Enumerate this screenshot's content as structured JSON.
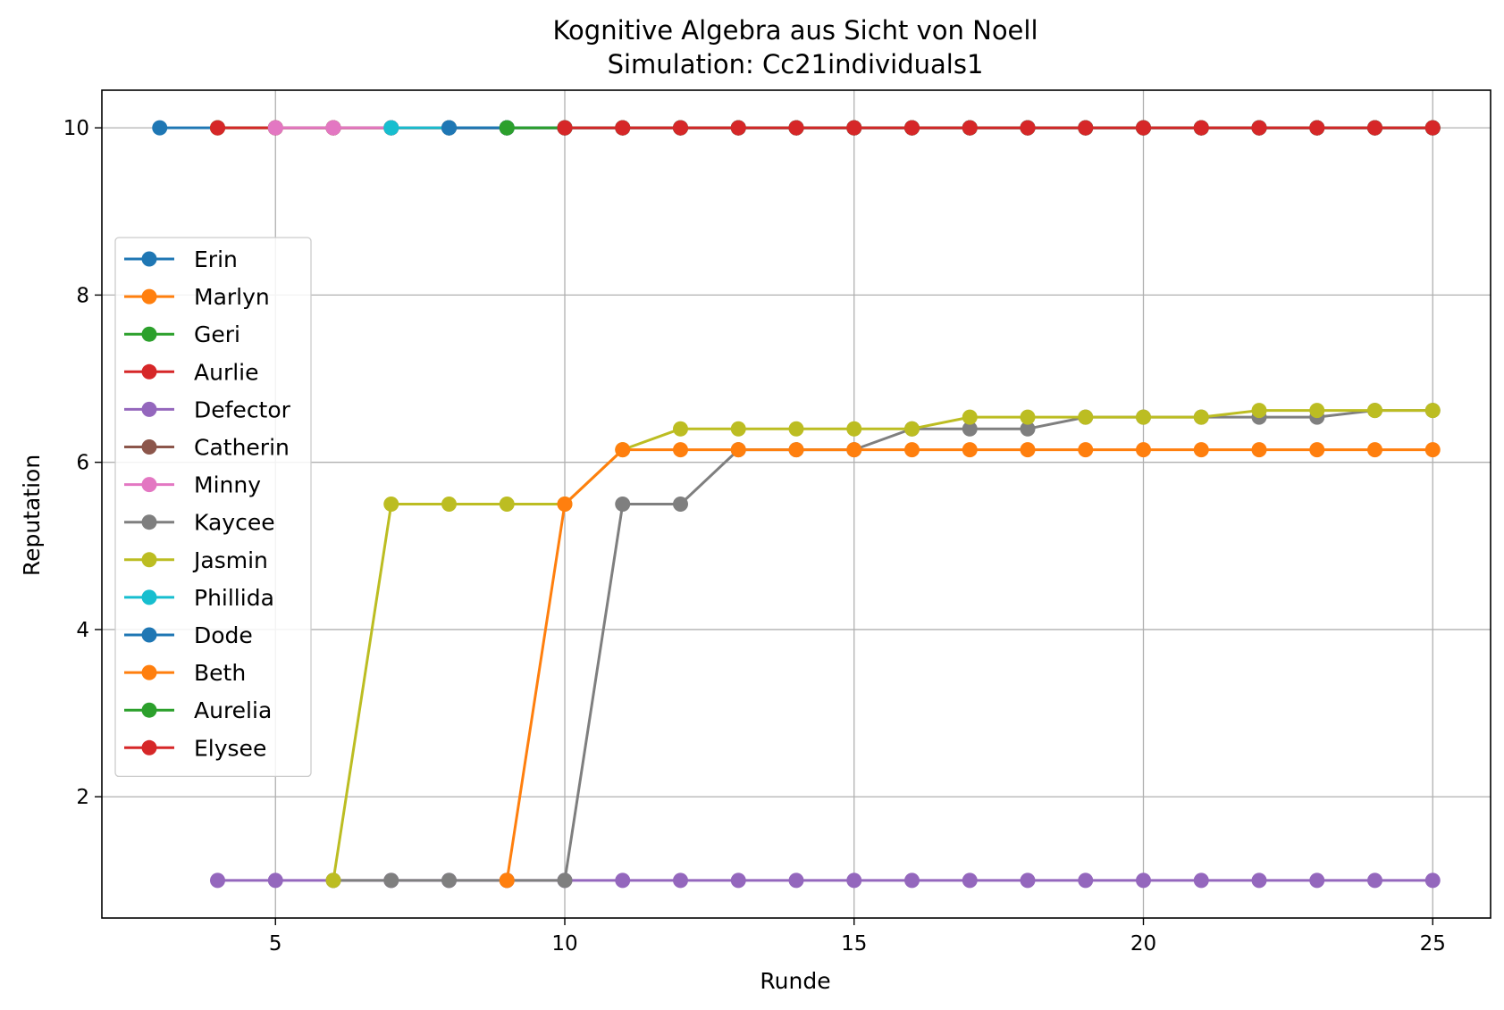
{
  "chart_data": {
    "type": "line",
    "title": "Kognitive Algebra aus Sicht von Noell",
    "subtitle": "Simulation: Cc21individuals1",
    "xlabel": "Runde",
    "ylabel": "Reputation",
    "xlim": [
      2.0,
      26.0
    ],
    "ylim": [
      0.55,
      10.45
    ],
    "xticks": [
      5,
      10,
      15,
      20,
      25
    ],
    "yticks": [
      2,
      4,
      6,
      8,
      10
    ],
    "grid": true,
    "legend_position": "center-left",
    "series": [
      {
        "name": "Erin",
        "color": "#1f77b4",
        "x": [
          3,
          4,
          5,
          6,
          7,
          8,
          9,
          10,
          11,
          12,
          13,
          14,
          15,
          16,
          17,
          18,
          19,
          20,
          21,
          22,
          23,
          24,
          25
        ],
        "y": [
          10,
          10,
          10,
          10,
          10,
          10,
          10,
          10,
          10,
          10,
          10,
          10,
          10,
          10,
          10,
          10,
          10,
          10,
          10,
          10,
          10,
          10,
          10
        ]
      },
      {
        "name": "Marlyn",
        "color": "#ff7f0e",
        "x": [
          4,
          5,
          6,
          7,
          8,
          9,
          10,
          11,
          12,
          13,
          14,
          15,
          16,
          17,
          18,
          19,
          20,
          21,
          22,
          23,
          24,
          25
        ],
        "y": [
          10,
          10,
          10,
          10,
          10,
          10,
          10,
          10,
          10,
          10,
          10,
          10,
          10,
          10,
          10,
          10,
          10,
          10,
          10,
          10,
          10,
          10
        ]
      },
      {
        "name": "Geri",
        "color": "#2ca02c",
        "x": [
          4,
          5,
          6,
          7,
          8,
          9,
          10,
          11,
          12,
          13,
          14,
          15,
          16,
          17,
          18,
          19,
          20,
          21,
          22,
          23,
          24,
          25
        ],
        "y": [
          10,
          10,
          10,
          10,
          10,
          10,
          10,
          10,
          10,
          10,
          10,
          10,
          10,
          10,
          10,
          10,
          10,
          10,
          10,
          10,
          10,
          10
        ]
      },
      {
        "name": "Aurlie",
        "color": "#d62728",
        "x": [
          4,
          5,
          6,
          7,
          8,
          9,
          10,
          11,
          12,
          13,
          14,
          15,
          16,
          17,
          18,
          19,
          20,
          21,
          22,
          23,
          24,
          25
        ],
        "y": [
          10,
          10,
          10,
          10,
          10,
          10,
          10,
          10,
          10,
          10,
          10,
          10,
          10,
          10,
          10,
          10,
          10,
          10,
          10,
          10,
          10,
          10
        ]
      },
      {
        "name": "Defector",
        "color": "#9467bd",
        "x": [
          4,
          5,
          6,
          7,
          8,
          9,
          10,
          11,
          12,
          13,
          14,
          15,
          16,
          17,
          18,
          19,
          20,
          21,
          22,
          23,
          24,
          25
        ],
        "y": [
          1,
          1,
          1,
          1,
          1,
          1,
          1,
          1,
          1,
          1,
          1,
          1,
          1,
          1,
          1,
          1,
          1,
          1,
          1,
          1,
          1,
          1
        ]
      },
      {
        "name": "Catherin",
        "color": "#8c564b",
        "x": [
          5,
          6,
          7,
          8,
          9,
          10,
          11,
          12,
          13,
          14,
          15,
          16,
          17,
          18,
          19,
          20,
          21,
          22,
          23,
          24,
          25
        ],
        "y": [
          10,
          10,
          10,
          10,
          10,
          10,
          10,
          10,
          10,
          10,
          10,
          10,
          10,
          10,
          10,
          10,
          10,
          10,
          10,
          10,
          10
        ]
      },
      {
        "name": "Minny",
        "color": "#e377c2",
        "x": [
          5,
          6,
          7,
          8,
          9,
          10,
          11,
          12,
          13,
          14,
          15,
          16,
          17,
          18,
          19,
          20,
          21,
          22,
          23,
          24,
          25
        ],
        "y": [
          10,
          10,
          10,
          10,
          10,
          10,
          10,
          10,
          10,
          10,
          10,
          10,
          10,
          10,
          10,
          10,
          10,
          10,
          10,
          10,
          10
        ]
      },
      {
        "name": "Kaycee",
        "color": "#7f7f7f",
        "x": [
          6,
          7,
          8,
          9,
          10,
          11,
          12,
          13,
          14,
          15,
          16,
          17,
          18,
          19,
          20,
          21,
          22,
          23,
          24,
          25
        ],
        "y": [
          1,
          1,
          1,
          1,
          1,
          5.5,
          5.5,
          6.15,
          6.15,
          6.15,
          6.4,
          6.4,
          6.4,
          6.54,
          6.54,
          6.54,
          6.54,
          6.54,
          6.62,
          6.62
        ]
      },
      {
        "name": "Jasmin",
        "color": "#bcbd22",
        "x": [
          6,
          7,
          8,
          9,
          10,
          11,
          12,
          13,
          14,
          15,
          16,
          17,
          18,
          19,
          20,
          21,
          22,
          23,
          24,
          25
        ],
        "y": [
          1,
          5.5,
          5.5,
          5.5,
          5.5,
          6.15,
          6.4,
          6.4,
          6.4,
          6.4,
          6.4,
          6.54,
          6.54,
          6.54,
          6.54,
          6.54,
          6.62,
          6.62,
          6.62,
          6.62
        ]
      },
      {
        "name": "Phillida",
        "color": "#17becf",
        "x": [
          7,
          8,
          9,
          10,
          11,
          12,
          13,
          14,
          15,
          16,
          17,
          18,
          19,
          20,
          21,
          22,
          23,
          24,
          25
        ],
        "y": [
          10,
          10,
          10,
          10,
          10,
          10,
          10,
          10,
          10,
          10,
          10,
          10,
          10,
          10,
          10,
          10,
          10,
          10,
          10
        ]
      },
      {
        "name": "Dode",
        "color": "#1f77b4",
        "x": [
          8,
          9,
          10,
          11,
          12,
          13,
          14,
          15,
          16,
          17,
          18,
          19,
          20,
          21,
          22,
          23,
          24,
          25
        ],
        "y": [
          10,
          10,
          10,
          10,
          10,
          10,
          10,
          10,
          10,
          10,
          10,
          10,
          10,
          10,
          10,
          10,
          10,
          10
        ]
      },
      {
        "name": "Beth",
        "color": "#ff7f0e",
        "x": [
          9,
          10,
          11,
          12,
          13,
          14,
          15,
          16,
          17,
          18,
          19,
          20,
          21,
          22,
          23,
          24,
          25
        ],
        "y": [
          1,
          5.5,
          6.15,
          6.15,
          6.15,
          6.15,
          6.15,
          6.15,
          6.15,
          6.15,
          6.15,
          6.15,
          6.15,
          6.15,
          6.15,
          6.15,
          6.15
        ]
      },
      {
        "name": "Aurelia",
        "color": "#2ca02c",
        "x": [
          9,
          10,
          11,
          12,
          13,
          14,
          15,
          16,
          17,
          18,
          19,
          20,
          21,
          22,
          23,
          24,
          25
        ],
        "y": [
          10,
          10,
          10,
          10,
          10,
          10,
          10,
          10,
          10,
          10,
          10,
          10,
          10,
          10,
          10,
          10,
          10
        ]
      },
      {
        "name": "Elysee",
        "color": "#d62728",
        "x": [
          10,
          11,
          12,
          13,
          14,
          15,
          16,
          17,
          18,
          19,
          20,
          21,
          22,
          23,
          24,
          25
        ],
        "y": [
          10,
          10,
          10,
          10,
          10,
          10,
          10,
          10,
          10,
          10,
          10,
          10,
          10,
          10,
          10,
          10
        ]
      }
    ]
  }
}
